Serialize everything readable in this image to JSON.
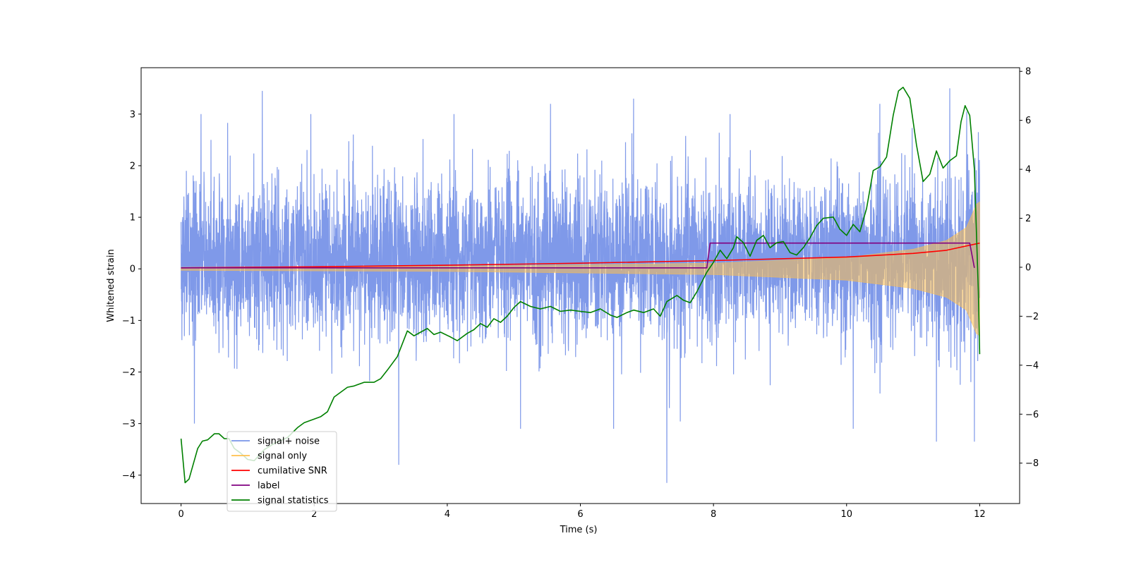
{
  "chart_data": {
    "type": "line",
    "title": "",
    "xlabel": "Time (s)",
    "ylabel": "Whitened strain",
    "y2label": "",
    "xlim": [
      -0.6,
      12.6
    ],
    "ylim": [
      -4.55,
      3.9
    ],
    "y2lim": [
      -9.65,
      8.15
    ],
    "x_ticks": [
      0,
      2,
      4,
      6,
      8,
      10,
      12
    ],
    "y_ticks": [
      -4,
      -3,
      -2,
      -1,
      0,
      1,
      2,
      3
    ],
    "y2_ticks": [
      -8,
      -6,
      -4,
      -2,
      0,
      2,
      4,
      6,
      8
    ],
    "grid": false,
    "legend_position": "lower-left",
    "legend": [
      {
        "label": "signal+ noise",
        "color": "#7894e8"
      },
      {
        "label": "signal only",
        "color": "#ffc04d"
      },
      {
        "label": "cumilative SNR",
        "color": "#ff0000"
      },
      {
        "label": "label",
        "color": "#800080"
      },
      {
        "label": "signal statistics",
        "color": "#008000"
      }
    ],
    "series": [
      {
        "name": "signal+ noise",
        "axis": "left",
        "color": "#7894e8",
        "note_type": "noise",
        "x_range": [
          0,
          12
        ],
        "typical_band": [
          -1.6,
          2.0
        ],
        "peaks": [
          {
            "x": 0.08,
            "y": 1.9
          },
          {
            "x": 0.3,
            "y": 3.0
          },
          {
            "x": 0.45,
            "y": 2.5
          },
          {
            "x": 1.22,
            "y": 3.45
          },
          {
            "x": 1.95,
            "y": 3.0
          },
          {
            "x": 4.1,
            "y": 3.0
          },
          {
            "x": 5.55,
            "y": 3.2
          },
          {
            "x": 6.8,
            "y": 3.3
          },
          {
            "x": 8.25,
            "y": 3.0
          },
          {
            "x": 10.5,
            "y": 3.2
          },
          {
            "x": 11.55,
            "y": 3.5
          },
          {
            "x": 11.98,
            "y": 2.65
          }
        ],
        "troughs": [
          {
            "x": 0.2,
            "y": -3.0
          },
          {
            "x": 3.27,
            "y": -3.8
          },
          {
            "x": 5.1,
            "y": -3.1
          },
          {
            "x": 6.5,
            "y": -3.1
          },
          {
            "x": 7.3,
            "y": -4.15
          },
          {
            "x": 10.1,
            "y": -3.1
          },
          {
            "x": 11.35,
            "y": -3.35
          },
          {
            "x": 11.92,
            "y": -3.35
          }
        ]
      },
      {
        "name": "signal only",
        "axis": "left",
        "color": "#ffc04d",
        "note_type": "chirp envelope",
        "envelope": [
          [
            0,
            0.03
          ],
          [
            4,
            0.05
          ],
          [
            8,
            0.11
          ],
          [
            10,
            0.22
          ],
          [
            11,
            0.38
          ],
          [
            11.5,
            0.55
          ],
          [
            11.8,
            0.8
          ],
          [
            11.95,
            1.25
          ],
          [
            12,
            1.3
          ]
        ]
      },
      {
        "name": "cumilative SNR",
        "axis": "left",
        "color": "#ff0000",
        "points": [
          [
            0,
            0.02
          ],
          [
            2,
            0.04
          ],
          [
            4,
            0.07
          ],
          [
            6,
            0.11
          ],
          [
            8,
            0.16
          ],
          [
            10,
            0.23
          ],
          [
            11,
            0.3
          ],
          [
            11.5,
            0.36
          ],
          [
            12,
            0.5
          ]
        ]
      },
      {
        "name": "label",
        "axis": "left",
        "color": "#800080",
        "points": [
          [
            0,
            0.02
          ],
          [
            7.9,
            0.02
          ],
          [
            7.95,
            0.5
          ],
          [
            11.85,
            0.5
          ],
          [
            11.92,
            0.02
          ]
        ]
      },
      {
        "name": "signal statistics",
        "axis": "right",
        "color": "#008000",
        "points": [
          [
            0,
            -7.0
          ],
          [
            0.06,
            -8.8
          ],
          [
            0.12,
            -8.65
          ],
          [
            0.25,
            -7.4
          ],
          [
            0.32,
            -7.1
          ],
          [
            0.4,
            -7.05
          ],
          [
            0.5,
            -6.8
          ],
          [
            0.57,
            -6.8
          ],
          [
            0.65,
            -7.0
          ],
          [
            0.72,
            -7.0
          ],
          [
            0.8,
            -7.4
          ],
          [
            0.9,
            -7.6
          ],
          [
            1.0,
            -7.85
          ],
          [
            1.1,
            -7.9
          ],
          [
            1.25,
            -7.45
          ],
          [
            1.4,
            -7.2
          ],
          [
            1.6,
            -6.95
          ],
          [
            1.75,
            -6.55
          ],
          [
            1.85,
            -6.35
          ],
          [
            2.0,
            -6.2
          ],
          [
            2.1,
            -6.1
          ],
          [
            2.2,
            -5.9
          ],
          [
            2.3,
            -5.3
          ],
          [
            2.5,
            -4.9
          ],
          [
            2.6,
            -4.85
          ],
          [
            2.75,
            -4.7
          ],
          [
            2.9,
            -4.7
          ],
          [
            3.0,
            -4.55
          ],
          [
            3.1,
            -4.2
          ],
          [
            3.25,
            -3.65
          ],
          [
            3.4,
            -2.6
          ],
          [
            3.5,
            -2.8
          ],
          [
            3.6,
            -2.65
          ],
          [
            3.7,
            -2.5
          ],
          [
            3.8,
            -2.75
          ],
          [
            3.9,
            -2.65
          ],
          [
            4.05,
            -2.85
          ],
          [
            4.15,
            -3.0
          ],
          [
            4.3,
            -2.7
          ],
          [
            4.4,
            -2.55
          ],
          [
            4.5,
            -2.3
          ],
          [
            4.6,
            -2.45
          ],
          [
            4.7,
            -2.1
          ],
          [
            4.8,
            -2.25
          ],
          [
            4.9,
            -2.0
          ],
          [
            5.0,
            -1.65
          ],
          [
            5.1,
            -1.4
          ],
          [
            5.25,
            -1.6
          ],
          [
            5.4,
            -1.7
          ],
          [
            5.55,
            -1.6
          ],
          [
            5.7,
            -1.8
          ],
          [
            5.85,
            -1.75
          ],
          [
            6.0,
            -1.8
          ],
          [
            6.15,
            -1.85
          ],
          [
            6.3,
            -1.7
          ],
          [
            6.45,
            -1.95
          ],
          [
            6.55,
            -2.05
          ],
          [
            6.7,
            -1.85
          ],
          [
            6.8,
            -1.75
          ],
          [
            6.95,
            -1.85
          ],
          [
            7.1,
            -1.7
          ],
          [
            7.2,
            -2.0
          ],
          [
            7.3,
            -1.4
          ],
          [
            7.45,
            -1.15
          ],
          [
            7.55,
            -1.35
          ],
          [
            7.65,
            -1.45
          ],
          [
            7.75,
            -1.0
          ],
          [
            7.9,
            -0.2
          ],
          [
            8.0,
            0.2
          ],
          [
            8.1,
            0.7
          ],
          [
            8.2,
            0.35
          ],
          [
            8.3,
            0.8
          ],
          [
            8.35,
            1.25
          ],
          [
            8.45,
            1.0
          ],
          [
            8.55,
            0.45
          ],
          [
            8.65,
            1.1
          ],
          [
            8.75,
            1.3
          ],
          [
            8.85,
            0.8
          ],
          [
            8.95,
            1.0
          ],
          [
            9.05,
            1.05
          ],
          [
            9.15,
            0.6
          ],
          [
            9.25,
            0.5
          ],
          [
            9.35,
            0.8
          ],
          [
            9.45,
            1.2
          ],
          [
            9.55,
            1.7
          ],
          [
            9.65,
            2.0
          ],
          [
            9.8,
            2.05
          ],
          [
            9.9,
            1.55
          ],
          [
            10.0,
            1.3
          ],
          [
            10.1,
            1.75
          ],
          [
            10.2,
            1.45
          ],
          [
            10.3,
            2.4
          ],
          [
            10.4,
            3.95
          ],
          [
            10.5,
            4.1
          ],
          [
            10.6,
            4.5
          ],
          [
            10.7,
            6.2
          ],
          [
            10.78,
            7.2
          ],
          [
            10.85,
            7.35
          ],
          [
            10.95,
            6.9
          ],
          [
            11.05,
            5.0
          ],
          [
            11.15,
            3.5
          ],
          [
            11.25,
            3.8
          ],
          [
            11.35,
            4.75
          ],
          [
            11.45,
            4.05
          ],
          [
            11.55,
            4.35
          ],
          [
            11.65,
            4.55
          ],
          [
            11.72,
            5.95
          ],
          [
            11.78,
            6.6
          ],
          [
            11.85,
            6.2
          ],
          [
            11.92,
            4.0
          ],
          [
            11.98,
            -1.0
          ],
          [
            12.0,
            -3.55
          ]
        ]
      }
    ]
  }
}
